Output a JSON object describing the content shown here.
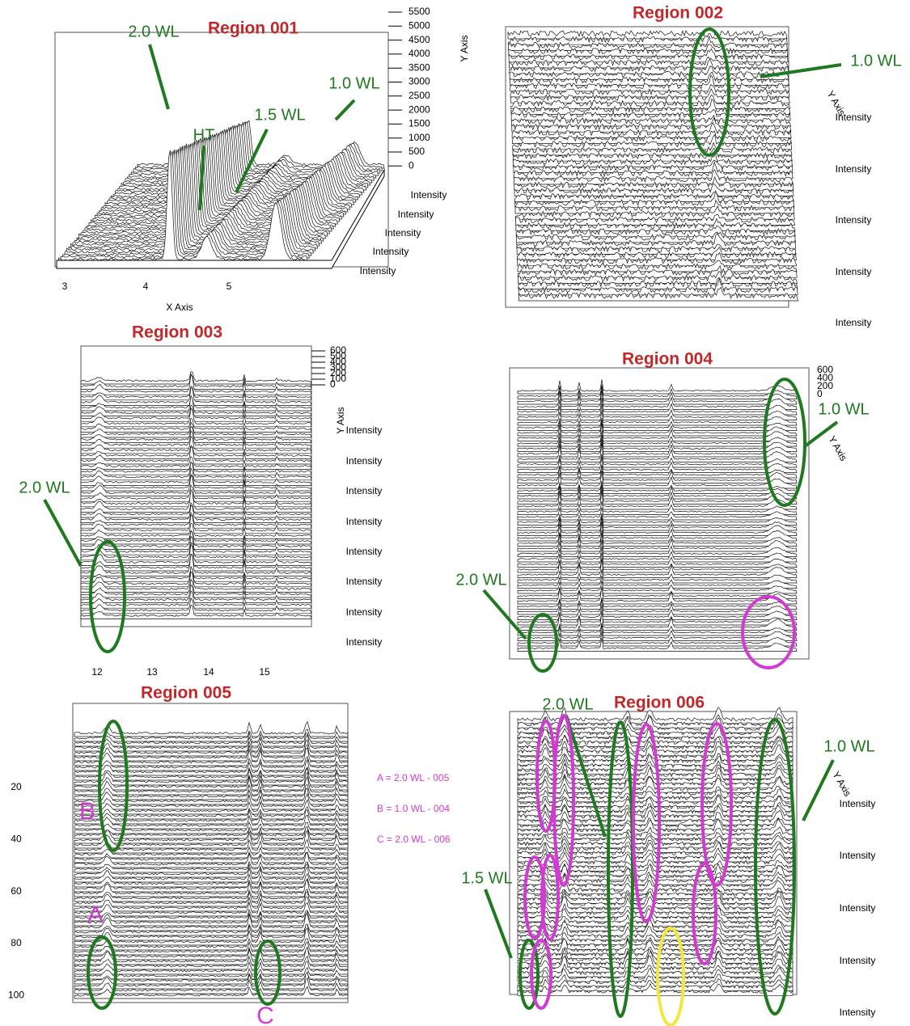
{
  "panels": [
    {
      "title": "Region 001",
      "x_axis_label": "X Axis",
      "y_axis_label": "Y Axis",
      "x_ticks": [
        "3",
        "4",
        "5"
      ],
      "y_ticks": [
        "5500",
        "5000",
        "4500",
        "4000",
        "3500",
        "3000",
        "2500",
        "2000",
        "1500",
        "1000",
        "500",
        "0"
      ],
      "depth_labels": [
        "Intensity",
        "Intensity",
        "Intensity",
        "Intensity",
        "Intensity"
      ],
      "annotations": [
        "2.0 WL",
        "HT",
        "1.5 WL",
        "1.0 WL"
      ]
    },
    {
      "title": "Region 002",
      "y_axis_label": "Y Axis",
      "depth_labels": [
        "Intensity",
        "Intensity",
        "Intensity",
        "Intensity",
        "Intensity"
      ],
      "annotations": [
        "1.0 WL"
      ]
    },
    {
      "title": "Region 003",
      "y_axis_label": "Y Axis",
      "x_ticks": [
        "12",
        "13",
        "14",
        "15"
      ],
      "y_ticks": [
        "600",
        "500",
        "400",
        "300",
        "200",
        "100",
        "0"
      ],
      "depth_labels": [
        "Intensity",
        "Intensity",
        "Intensity",
        "Intensity",
        "Intensity",
        "Intensity",
        "Intensity",
        "Intensity"
      ],
      "annotations": [
        "2.0 WL"
      ]
    },
    {
      "title": "Region 004",
      "y_axis_label": "Y Axis",
      "y_ticks": [
        "600",
        "400",
        "200",
        "0"
      ],
      "annotations": [
        "1.0 WL",
        "2.0 WL"
      ]
    },
    {
      "title": "Region 005",
      "y_ticks": [
        "20",
        "40",
        "60",
        "80",
        "100"
      ],
      "annotations": [
        "B",
        "A",
        "C"
      ]
    },
    {
      "title": "Region 006",
      "y_axis_label": "Y Axis",
      "depth_labels": [
        "Intensity",
        "Intensity",
        "Intensity",
        "Intensity",
        "Intensity"
      ],
      "annotations": [
        "2.0 WL",
        "1.0 WL",
        "1.5 WL"
      ]
    }
  ],
  "legend": [
    "A = 2.0 WL - 005",
    "B = 1.0 WL - 004",
    "C = 2.0 WL - 006"
  ]
}
